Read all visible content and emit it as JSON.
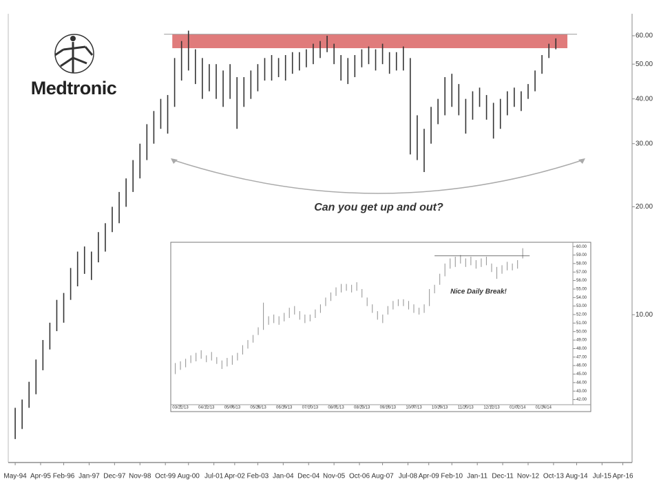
{
  "logo": {
    "text": "Medtronic"
  },
  "chart_data": [
    {
      "type": "hilo",
      "color": "#333333",
      "log_scale": true,
      "annotation": "Can you get up and out?",
      "resistance_band": {
        "low": 55.4,
        "high": 60.6,
        "from": 68,
        "to": 239,
        "color": "#e07b7b"
      },
      "xlim": [
        -3,
        267
      ],
      "xticks": [
        {
          "value": 0,
          "label": "May-94"
        },
        {
          "value": 11,
          "label": "Apr-95"
        },
        {
          "value": 21,
          "label": "Feb-96"
        },
        {
          "value": 32,
          "label": "Jan-97"
        },
        {
          "value": 43,
          "label": "Dec-97"
        },
        {
          "value": 54,
          "label": "Nov-98"
        },
        {
          "value": 65,
          "label": "Oct-99"
        },
        {
          "value": 75,
          "label": "Aug-00"
        },
        {
          "value": 86,
          "label": "Jul-01"
        },
        {
          "value": 95,
          "label": "Apr-02"
        },
        {
          "value": 105,
          "label": "Feb-03"
        },
        {
          "value": 116,
          "label": "Jan-04"
        },
        {
          "value": 127,
          "label": "Dec-04"
        },
        {
          "value": 138,
          "label": "Nov-05"
        },
        {
          "value": 149,
          "label": "Oct-06"
        },
        {
          "value": 159,
          "label": "Aug-07"
        },
        {
          "value": 170,
          "label": "Jul-08"
        },
        {
          "value": 179,
          "label": "Apr-09"
        },
        {
          "value": 189,
          "label": "Feb-10"
        },
        {
          "value": 200,
          "label": "Jan-11"
        },
        {
          "value": 211,
          "label": "Dec-11"
        },
        {
          "value": 222,
          "label": "Nov-12"
        },
        {
          "value": 233,
          "label": "Oct-13"
        },
        {
          "value": 243,
          "label": "Aug-14"
        },
        {
          "value": 254,
          "label": "Jul-15"
        },
        {
          "value": 263,
          "label": "Apr-16"
        }
      ],
      "ylim": [
        3.87,
        69.1
      ],
      "yticks": [
        {
          "value": 10,
          "label": "10.00"
        },
        {
          "value": 20,
          "label": "20.00"
        },
        {
          "value": 30,
          "label": "30.00"
        },
        {
          "value": 40,
          "label": "40.00"
        },
        {
          "value": 50,
          "label": "50.00"
        },
        {
          "value": 60,
          "label": "60.00"
        }
      ],
      "x": [
        0,
        3,
        6,
        9,
        12,
        15,
        18,
        21,
        24,
        27,
        30,
        33,
        36,
        39,
        42,
        45,
        48,
        51,
        54,
        57,
        60,
        63,
        66,
        69,
        72,
        75,
        78,
        81,
        84,
        87,
        90,
        93,
        96,
        99,
        102,
        105,
        108,
        111,
        114,
        117,
        120,
        123,
        126,
        129,
        132,
        135,
        138,
        141,
        144,
        147,
        150,
        153,
        156,
        159,
        162,
        165,
        168,
        171,
        174,
        177,
        180,
        183,
        186,
        189,
        192,
        195,
        198,
        201,
        204,
        207,
        210,
        213,
        216,
        219,
        222,
        225,
        228,
        231,
        234
      ],
      "high": [
        5.5,
        5.8,
        6.5,
        7.5,
        8.5,
        9.5,
        11,
        11.5,
        13.5,
        15,
        15.5,
        15,
        17,
        18,
        20,
        22,
        24,
        27,
        30,
        34,
        37,
        40,
        41,
        52,
        58,
        62,
        55,
        52,
        50,
        50,
        48,
        50,
        46,
        46,
        48,
        50,
        52,
        53,
        52,
        53,
        54,
        54,
        55,
        57,
        58,
        60,
        57,
        53,
        52,
        53,
        55,
        56,
        55,
        57,
        54,
        54,
        56,
        52,
        36,
        33,
        38,
        40,
        46,
        47,
        44,
        40,
        42,
        43,
        41,
        39,
        40,
        42,
        43,
        42,
        44,
        48,
        53,
        57,
        59
      ],
      "low": [
        4.5,
        4.8,
        5.5,
        6,
        7,
        8,
        9,
        9.5,
        11,
        12,
        13,
        12.5,
        14,
        15,
        17,
        18,
        20,
        22,
        24,
        27,
        30,
        33,
        32,
        38,
        45,
        48,
        44,
        40,
        42,
        40,
        38,
        40,
        33,
        38,
        40,
        42,
        45,
        45,
        46,
        45,
        47,
        48,
        49,
        50,
        52,
        54,
        50,
        45,
        44,
        46,
        49,
        50,
        48,
        50,
        47,
        48,
        48,
        28,
        27,
        25,
        30,
        34,
        36,
        38,
        36,
        32,
        35,
        38,
        35,
        31,
        33,
        36,
        38,
        37,
        40,
        42,
        47,
        52,
        55
      ]
    },
    {
      "type": "hilo",
      "color": "#9a9a9a",
      "log_scale": false,
      "annotation": "Nice Daily Break!",
      "resistance": {
        "value": 58.9,
        "from": 147,
        "to": 202
      },
      "xlim": [
        -5.6,
        227
      ],
      "xticks": [
        {
          "value": 0,
          "label": "03/22/13"
        },
        {
          "value": 15,
          "label": "04/12/13"
        },
        {
          "value": 30,
          "label": "05/06/13"
        },
        {
          "value": 45,
          "label": "05/28/13"
        },
        {
          "value": 60,
          "label": "06/19/13"
        },
        {
          "value": 75,
          "label": "07/10/13"
        },
        {
          "value": 90,
          "label": "08/01/13"
        },
        {
          "value": 105,
          "label": "08/23/13"
        },
        {
          "value": 120,
          "label": "09/16/13"
        },
        {
          "value": 135,
          "label": "10/07/13"
        },
        {
          "value": 150,
          "label": "10/29/13"
        },
        {
          "value": 165,
          "label": "11/20/13"
        },
        {
          "value": 180,
          "label": "12/12/13"
        },
        {
          "value": 195,
          "label": "01/02/14"
        },
        {
          "value": 210,
          "label": "01/24/14"
        }
      ],
      "ylim": [
        41.4,
        60.5
      ],
      "yticks": [
        {
          "value": 42,
          "label": "42.00"
        },
        {
          "value": 43,
          "label": "43.00"
        },
        {
          "value": 44,
          "label": "44.00"
        },
        {
          "value": 45,
          "label": "45.00"
        },
        {
          "value": 46,
          "label": "46.00"
        },
        {
          "value": 47,
          "label": "47.00"
        },
        {
          "value": 48,
          "label": "48.00"
        },
        {
          "value": 49,
          "label": "49.00"
        },
        {
          "value": 50,
          "label": "50.00"
        },
        {
          "value": 51,
          "label": "51.00"
        },
        {
          "value": 52,
          "label": "52.00"
        },
        {
          "value": 53,
          "label": "53.00"
        },
        {
          "value": 54,
          "label": "54.00"
        },
        {
          "value": 55,
          "label": "55.00"
        },
        {
          "value": 56,
          "label": "56.00"
        },
        {
          "value": 57,
          "label": "57.00"
        },
        {
          "value": 58,
          "label": "58.00"
        },
        {
          "value": 59,
          "label": "59.00"
        },
        {
          "value": 60,
          "label": "60.00"
        }
      ],
      "x": [
        -3,
        0,
        3,
        6,
        9,
        12,
        15,
        18,
        21,
        24,
        27,
        30,
        33,
        36,
        39,
        42,
        45,
        48,
        51,
        54,
        57,
        60,
        63,
        66,
        69,
        72,
        75,
        78,
        81,
        84,
        87,
        90,
        93,
        96,
        99,
        102,
        105,
        108,
        111,
        114,
        117,
        120,
        123,
        126,
        129,
        132,
        135,
        138,
        141,
        144,
        147,
        150,
        153,
        156,
        159,
        162,
        165,
        168,
        171,
        174,
        177,
        180,
        183,
        186,
        189,
        192,
        195,
        198
      ],
      "high": [
        46.3,
        46.5,
        46.8,
        47.2,
        47.5,
        47.8,
        47.2,
        47.6,
        47.0,
        46.6,
        46.9,
        47.2,
        47.5,
        48.4,
        49.0,
        49.6,
        50.5,
        53.4,
        51.8,
        52.0,
        51.8,
        52.2,
        52.8,
        53.0,
        52.4,
        52.0,
        52.0,
        52.6,
        53.2,
        54.0,
        54.6,
        55.2,
        55.6,
        55.6,
        55.5,
        55.8,
        55.0,
        54.0,
        53.2,
        52.4,
        52.0,
        53.0,
        53.6,
        53.8,
        53.8,
        53.6,
        53.2,
        52.8,
        53.2,
        55.0,
        55.5,
        56.8,
        58.0,
        58.6,
        58.8,
        59.0,
        58.6,
        58.8,
        58.4,
        58.6,
        58.8,
        58.0,
        57.6,
        57.8,
        58.2,
        58.0,
        58.4,
        59.8
      ],
      "low": [
        45.0,
        45.5,
        45.8,
        46.3,
        46.5,
        46.8,
        46.4,
        46.6,
        46.2,
        45.6,
        45.9,
        46.1,
        46.6,
        47.3,
        48.0,
        48.7,
        49.6,
        50.2,
        50.8,
        51.0,
        50.8,
        51.2,
        51.6,
        52.0,
        51.4,
        51.0,
        51.2,
        51.6,
        52.2,
        53.0,
        53.6,
        54.2,
        54.6,
        54.8,
        54.6,
        54.8,
        54.0,
        53.0,
        52.2,
        51.4,
        51.0,
        52.0,
        52.6,
        53.0,
        53.0,
        52.6,
        52.2,
        52.0,
        52.2,
        53.0,
        54.5,
        55.5,
        56.5,
        57.4,
        57.6,
        58.0,
        57.6,
        57.8,
        57.4,
        57.6,
        57.8,
        57.0,
        56.2,
        56.8,
        57.2,
        57.2,
        57.4,
        58.6
      ]
    }
  ]
}
